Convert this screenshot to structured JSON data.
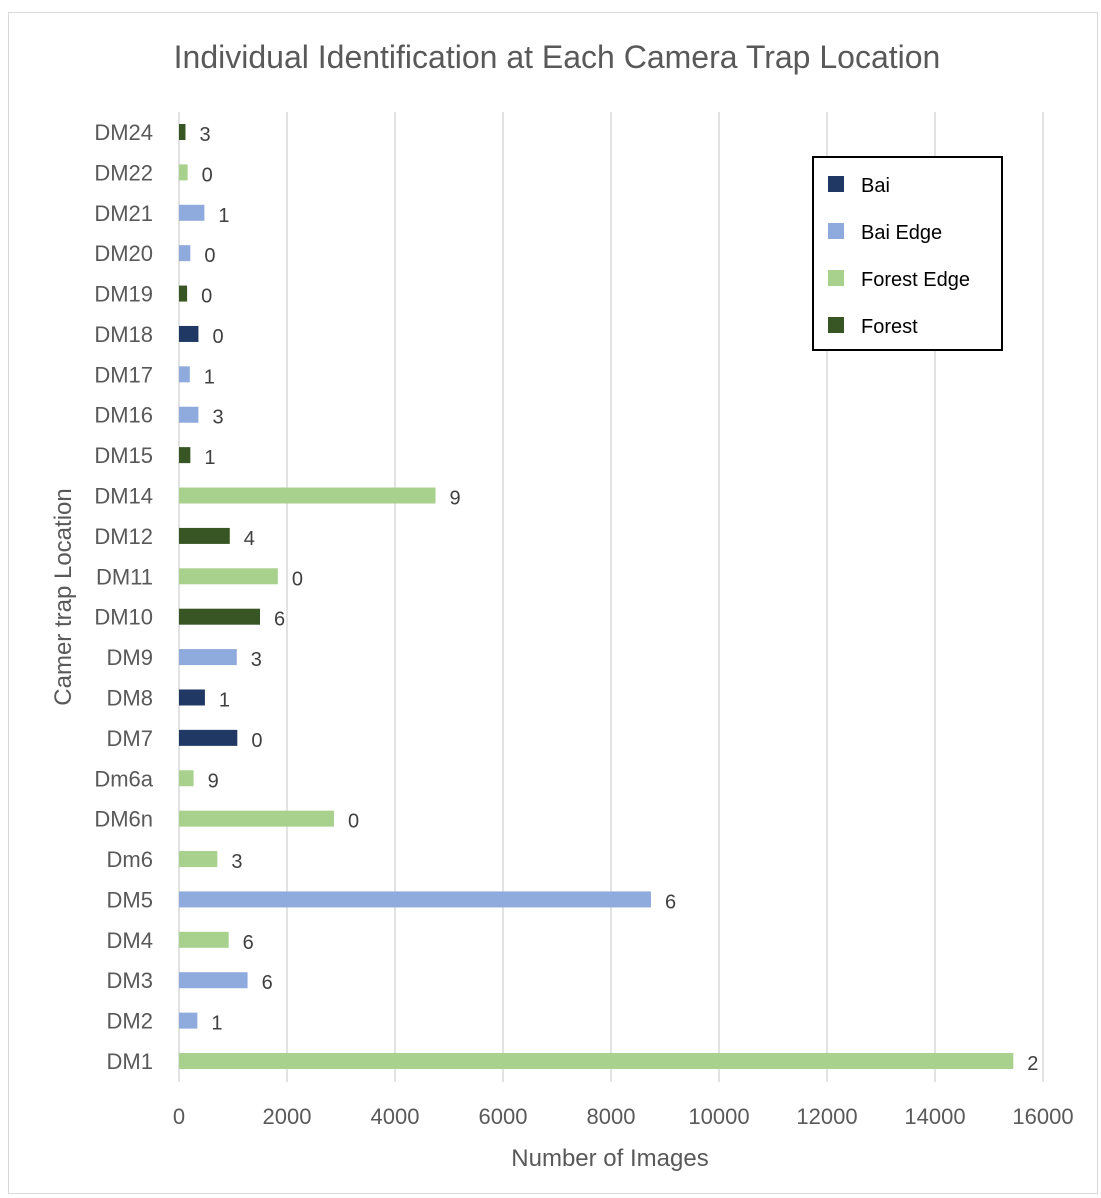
{
  "chart_data": {
    "type": "bar",
    "orientation": "horizontal",
    "title": "Individual Identification at Each Camera Trap Location",
    "xlabel": "Number of Images",
    "ylabel": "Camer trap Location",
    "xlim": [
      0,
      16000
    ],
    "x_ticks": [
      "0",
      "2000",
      "4000",
      "6000",
      "8000",
      "10000",
      "12000",
      "14000",
      "16000"
    ],
    "grid": "vertical",
    "legend_position": "top-right",
    "legend": [
      {
        "name": "Bai",
        "color": "#203864"
      },
      {
        "name": "Bai Edge",
        "color": "#8faadc"
      },
      {
        "name": "Forest Edge",
        "color": "#a9d18e"
      },
      {
        "name": "Forest",
        "color": "#375623"
      }
    ],
    "bars": [
      {
        "category": "DM24",
        "value": 120,
        "label": "3",
        "group": "Forest"
      },
      {
        "category": "DM22",
        "value": 160,
        "label": "0",
        "group": "Forest Edge"
      },
      {
        "category": "DM21",
        "value": 470,
        "label": "1",
        "group": "Bai Edge"
      },
      {
        "category": "DM20",
        "value": 210,
        "label": "0",
        "group": "Bai Edge"
      },
      {
        "category": "DM19",
        "value": 150,
        "label": "0",
        "group": "Forest"
      },
      {
        "category": "DM18",
        "value": 360,
        "label": "0",
        "group": "Bai"
      },
      {
        "category": "DM17",
        "value": 200,
        "label": "1",
        "group": "Bai Edge"
      },
      {
        "category": "DM16",
        "value": 360,
        "label": "3",
        "group": "Bai Edge"
      },
      {
        "category": "DM15",
        "value": 210,
        "label": "1",
        "group": "Forest"
      },
      {
        "category": "DM14",
        "value": 4750,
        "label": "9",
        "group": "Forest Edge"
      },
      {
        "category": "DM12",
        "value": 940,
        "label": "4",
        "group": "Forest"
      },
      {
        "category": "DM11",
        "value": 1830,
        "label": "0",
        "group": "Forest Edge"
      },
      {
        "category": "DM10",
        "value": 1500,
        "label": "6",
        "group": "Forest"
      },
      {
        "category": "DM9",
        "value": 1070,
        "label": "3",
        "group": "Bai Edge"
      },
      {
        "category": "DM8",
        "value": 480,
        "label": "1",
        "group": "Bai"
      },
      {
        "category": "DM7",
        "value": 1080,
        "label": "0",
        "group": "Bai"
      },
      {
        "category": "Dm6a",
        "value": 270,
        "label": "9",
        "group": "Forest Edge"
      },
      {
        "category": "DM6n",
        "value": 2870,
        "label": "0",
        "group": "Forest Edge"
      },
      {
        "category": "Dm6",
        "value": 710,
        "label": "3",
        "group": "Forest Edge"
      },
      {
        "category": "DM5",
        "value": 8740,
        "label": "6",
        "group": "Bai Edge"
      },
      {
        "category": "DM4",
        "value": 920,
        "label": "6",
        "group": "Forest Edge"
      },
      {
        "category": "DM3",
        "value": 1270,
        "label": "6",
        "group": "Bai Edge"
      },
      {
        "category": "DM2",
        "value": 340,
        "label": "1",
        "group": "Bai Edge"
      },
      {
        "category": "DM1",
        "value": 15450,
        "label": "2",
        "group": "Forest Edge"
      }
    ]
  }
}
